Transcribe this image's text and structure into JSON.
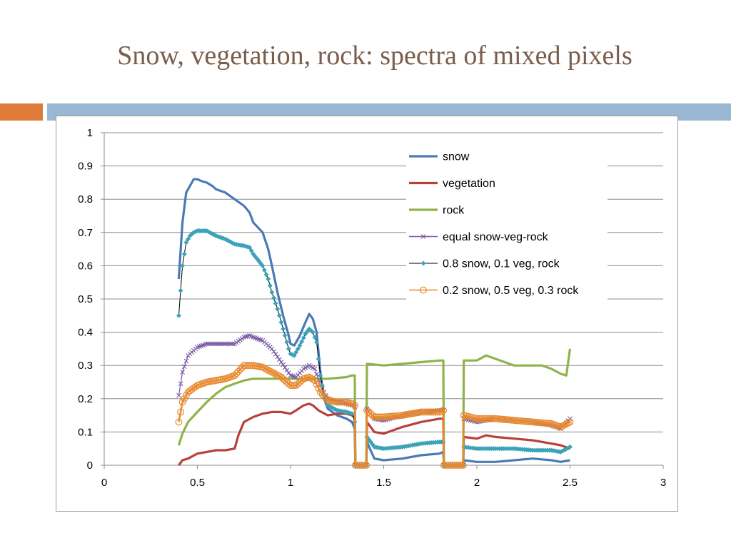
{
  "slide": {
    "title": "Snow, vegetation, rock: spectra of mixed pixels",
    "accent_left_color": "#e07b39",
    "accent_right_color": "#9ab7d3"
  },
  "chart_data": {
    "type": "line",
    "title": "",
    "xlabel": "",
    "ylabel": "",
    "xlim": [
      0,
      3
    ],
    "ylim": [
      0,
      1
    ],
    "x_ticks": [
      "0",
      "0.5",
      "1",
      "1.5",
      "2",
      "2.5",
      "3"
    ],
    "y_ticks": [
      "0",
      "0.1",
      "0.2",
      "0.3",
      "0.4",
      "0.5",
      "0.6",
      "0.7",
      "0.8",
      "0.9",
      "1"
    ],
    "grid": true,
    "legend_position": "top-right",
    "gaps": [
      [
        1.345,
        1.41
      ],
      [
        1.82,
        1.93
      ]
    ],
    "series": [
      {
        "name": "snow",
        "color": "#4a7ab5",
        "marker": "none",
        "width": 3.2,
        "points": [
          [
            0.4,
            0.56
          ],
          [
            0.42,
            0.73
          ],
          [
            0.44,
            0.82
          ],
          [
            0.46,
            0.84
          ],
          [
            0.48,
            0.86
          ],
          [
            0.5,
            0.86
          ],
          [
            0.52,
            0.855
          ],
          [
            0.55,
            0.85
          ],
          [
            0.58,
            0.84
          ],
          [
            0.6,
            0.83
          ],
          [
            0.65,
            0.82
          ],
          [
            0.7,
            0.8
          ],
          [
            0.75,
            0.78
          ],
          [
            0.78,
            0.76
          ],
          [
            0.8,
            0.73
          ],
          [
            0.85,
            0.7
          ],
          [
            0.88,
            0.65
          ],
          [
            0.9,
            0.6
          ],
          [
            0.93,
            0.52
          ],
          [
            0.96,
            0.45
          ],
          [
            0.99,
            0.39
          ],
          [
            1.0,
            0.365
          ],
          [
            1.02,
            0.36
          ],
          [
            1.05,
            0.39
          ],
          [
            1.08,
            0.43
          ],
          [
            1.1,
            0.455
          ],
          [
            1.12,
            0.44
          ],
          [
            1.14,
            0.4
          ],
          [
            1.16,
            0.28
          ],
          [
            1.18,
            0.2
          ],
          [
            1.2,
            0.17
          ],
          [
            1.25,
            0.15
          ],
          [
            1.3,
            0.14
          ],
          [
            1.33,
            0.13
          ],
          [
            1.345,
            0.11
          ],
          [
            1.41,
            0.07
          ],
          [
            1.45,
            0.02
          ],
          [
            1.5,
            0.015
          ],
          [
            1.6,
            0.02
          ],
          [
            1.7,
            0.03
          ],
          [
            1.8,
            0.035
          ],
          [
            1.82,
            0.04
          ],
          [
            1.93,
            0.015
          ],
          [
            2.0,
            0.01
          ],
          [
            2.1,
            0.01
          ],
          [
            2.2,
            0.015
          ],
          [
            2.3,
            0.02
          ],
          [
            2.4,
            0.015
          ],
          [
            2.45,
            0.01
          ],
          [
            2.5,
            0.015
          ]
        ]
      },
      {
        "name": "vegetation",
        "color": "#b8413a",
        "marker": "none",
        "width": 3.2,
        "points": [
          [
            0.4,
            0.0
          ],
          [
            0.42,
            0.015
          ],
          [
            0.45,
            0.02
          ],
          [
            0.5,
            0.035
          ],
          [
            0.55,
            0.04
          ],
          [
            0.6,
            0.045
          ],
          [
            0.65,
            0.045
          ],
          [
            0.7,
            0.05
          ],
          [
            0.72,
            0.09
          ],
          [
            0.75,
            0.13
          ],
          [
            0.8,
            0.145
          ],
          [
            0.85,
            0.155
          ],
          [
            0.9,
            0.16
          ],
          [
            0.95,
            0.16
          ],
          [
            1.0,
            0.155
          ],
          [
            1.03,
            0.165
          ],
          [
            1.07,
            0.18
          ],
          [
            1.1,
            0.185
          ],
          [
            1.12,
            0.18
          ],
          [
            1.15,
            0.165
          ],
          [
            1.2,
            0.15
          ],
          [
            1.25,
            0.155
          ],
          [
            1.3,
            0.155
          ],
          [
            1.33,
            0.15
          ],
          [
            1.345,
            0.145
          ],
          [
            1.41,
            0.13
          ],
          [
            1.45,
            0.1
          ],
          [
            1.5,
            0.095
          ],
          [
            1.6,
            0.115
          ],
          [
            1.7,
            0.13
          ],
          [
            1.8,
            0.14
          ],
          [
            1.82,
            0.14
          ],
          [
            1.93,
            0.085
          ],
          [
            2.0,
            0.08
          ],
          [
            2.05,
            0.09
          ],
          [
            2.1,
            0.085
          ],
          [
            2.2,
            0.08
          ],
          [
            2.3,
            0.075
          ],
          [
            2.4,
            0.065
          ],
          [
            2.45,
            0.06
          ],
          [
            2.5,
            0.05
          ]
        ]
      },
      {
        "name": "rock",
        "color": "#8fb34a",
        "marker": "none",
        "width": 3.2,
        "points": [
          [
            0.4,
            0.06
          ],
          [
            0.42,
            0.095
          ],
          [
            0.45,
            0.13
          ],
          [
            0.5,
            0.16
          ],
          [
            0.55,
            0.19
          ],
          [
            0.6,
            0.215
          ],
          [
            0.65,
            0.235
          ],
          [
            0.7,
            0.245
          ],
          [
            0.75,
            0.255
          ],
          [
            0.8,
            0.26
          ],
          [
            0.9,
            0.26
          ],
          [
            1.0,
            0.26
          ],
          [
            1.1,
            0.26
          ],
          [
            1.2,
            0.26
          ],
          [
            1.3,
            0.265
          ],
          [
            1.33,
            0.27
          ],
          [
            1.345,
            0.27
          ],
          [
            1.41,
            0.305
          ],
          [
            1.5,
            0.3
          ],
          [
            1.6,
            0.305
          ],
          [
            1.7,
            0.31
          ],
          [
            1.8,
            0.315
          ],
          [
            1.82,
            0.315
          ],
          [
            1.93,
            0.315
          ],
          [
            2.0,
            0.315
          ],
          [
            2.05,
            0.33
          ],
          [
            2.1,
            0.32
          ],
          [
            2.2,
            0.3
          ],
          [
            2.3,
            0.3
          ],
          [
            2.35,
            0.3
          ],
          [
            2.4,
            0.29
          ],
          [
            2.45,
            0.275
          ],
          [
            2.48,
            0.27
          ],
          [
            2.5,
            0.35
          ]
        ]
      },
      {
        "name": "equal snow-veg-rock",
        "color": "#7b5aa6",
        "marker": "x",
        "width": 1.2,
        "points": [
          [
            0.4,
            0.21
          ],
          [
            0.42,
            0.28
          ],
          [
            0.45,
            0.33
          ],
          [
            0.5,
            0.355
          ],
          [
            0.55,
            0.365
          ],
          [
            0.6,
            0.365
          ],
          [
            0.65,
            0.365
          ],
          [
            0.7,
            0.365
          ],
          [
            0.75,
            0.385
          ],
          [
            0.78,
            0.39
          ],
          [
            0.8,
            0.385
          ],
          [
            0.85,
            0.375
          ],
          [
            0.9,
            0.35
          ],
          [
            0.95,
            0.31
          ],
          [
            1.0,
            0.27
          ],
          [
            1.03,
            0.265
          ],
          [
            1.07,
            0.29
          ],
          [
            1.1,
            0.3
          ],
          [
            1.13,
            0.29
          ],
          [
            1.16,
            0.24
          ],
          [
            1.2,
            0.2
          ],
          [
            1.25,
            0.19
          ],
          [
            1.3,
            0.185
          ],
          [
            1.33,
            0.18
          ],
          [
            1.345,
            0.175
          ],
          [
            1.41,
            0.17
          ],
          [
            1.45,
            0.14
          ],
          [
            1.5,
            0.135
          ],
          [
            1.6,
            0.15
          ],
          [
            1.7,
            0.16
          ],
          [
            1.8,
            0.165
          ],
          [
            1.82,
            0.165
          ],
          [
            1.93,
            0.14
          ],
          [
            2.0,
            0.13
          ],
          [
            2.1,
            0.14
          ],
          [
            2.2,
            0.135
          ],
          [
            2.3,
            0.13
          ],
          [
            2.4,
            0.12
          ],
          [
            2.45,
            0.11
          ],
          [
            2.5,
            0.14
          ]
        ]
      },
      {
        "name": "0.8 snow, 0.1 veg, rock",
        "color": "#3ba3b8",
        "marker": "diamond",
        "width": 1.2,
        "points": [
          [
            0.4,
            0.45
          ],
          [
            0.42,
            0.6
          ],
          [
            0.44,
            0.67
          ],
          [
            0.46,
            0.69
          ],
          [
            0.48,
            0.7
          ],
          [
            0.5,
            0.705
          ],
          [
            0.55,
            0.705
          ],
          [
            0.6,
            0.69
          ],
          [
            0.65,
            0.68
          ],
          [
            0.7,
            0.665
          ],
          [
            0.75,
            0.66
          ],
          [
            0.78,
            0.655
          ],
          [
            0.8,
            0.635
          ],
          [
            0.85,
            0.6
          ],
          [
            0.88,
            0.56
          ],
          [
            0.9,
            0.52
          ],
          [
            0.93,
            0.47
          ],
          [
            0.96,
            0.41
          ],
          [
            0.99,
            0.35
          ],
          [
            1.0,
            0.335
          ],
          [
            1.02,
            0.33
          ],
          [
            1.05,
            0.36
          ],
          [
            1.08,
            0.395
          ],
          [
            1.1,
            0.41
          ],
          [
            1.12,
            0.4
          ],
          [
            1.14,
            0.37
          ],
          [
            1.16,
            0.27
          ],
          [
            1.18,
            0.21
          ],
          [
            1.2,
            0.18
          ],
          [
            1.25,
            0.165
          ],
          [
            1.3,
            0.16
          ],
          [
            1.33,
            0.155
          ],
          [
            1.345,
            0.13
          ],
          [
            1.41,
            0.085
          ],
          [
            1.45,
            0.055
          ],
          [
            1.5,
            0.05
          ],
          [
            1.6,
            0.055
          ],
          [
            1.7,
            0.065
          ],
          [
            1.8,
            0.07
          ],
          [
            1.82,
            0.07
          ],
          [
            1.93,
            0.055
          ],
          [
            2.0,
            0.05
          ],
          [
            2.1,
            0.05
          ],
          [
            2.2,
            0.05
          ],
          [
            2.3,
            0.045
          ],
          [
            2.4,
            0.045
          ],
          [
            2.45,
            0.04
          ],
          [
            2.5,
            0.055
          ]
        ]
      },
      {
        "name": "0.2 snow, 0.5 veg, 0.3 rock",
        "color": "#e8892e",
        "marker": "circle",
        "width": 2.5,
        "points": [
          [
            0.4,
            0.13
          ],
          [
            0.42,
            0.19
          ],
          [
            0.45,
            0.22
          ],
          [
            0.5,
            0.24
          ],
          [
            0.55,
            0.25
          ],
          [
            0.6,
            0.255
          ],
          [
            0.65,
            0.26
          ],
          [
            0.7,
            0.27
          ],
          [
            0.75,
            0.3
          ],
          [
            0.8,
            0.3
          ],
          [
            0.85,
            0.295
          ],
          [
            0.9,
            0.28
          ],
          [
            0.95,
            0.265
          ],
          [
            1.0,
            0.24
          ],
          [
            1.03,
            0.24
          ],
          [
            1.07,
            0.26
          ],
          [
            1.1,
            0.265
          ],
          [
            1.13,
            0.255
          ],
          [
            1.16,
            0.22
          ],
          [
            1.2,
            0.195
          ],
          [
            1.25,
            0.19
          ],
          [
            1.3,
            0.19
          ],
          [
            1.33,
            0.185
          ],
          [
            1.345,
            0.18
          ],
          [
            1.41,
            0.165
          ],
          [
            1.45,
            0.145
          ],
          [
            1.5,
            0.145
          ],
          [
            1.6,
            0.15
          ],
          [
            1.7,
            0.16
          ],
          [
            1.8,
            0.16
          ],
          [
            1.82,
            0.165
          ],
          [
            1.93,
            0.15
          ],
          [
            2.0,
            0.14
          ],
          [
            2.1,
            0.14
          ],
          [
            2.2,
            0.135
          ],
          [
            2.3,
            0.13
          ],
          [
            2.4,
            0.125
          ],
          [
            2.45,
            0.115
          ],
          [
            2.5,
            0.13
          ]
        ]
      }
    ]
  }
}
